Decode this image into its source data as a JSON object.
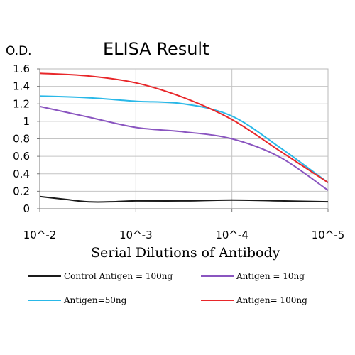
{
  "chart_data": {
    "type": "line",
    "title": "ELISA Result",
    "ylabel": "O.D.",
    "xlabel": "Serial Dilutions of Antibody",
    "x_ticks": [
      "10^-2",
      "10^-3",
      "10^-4",
      "10^-5"
    ],
    "y_ticks": [
      "1.6",
      "1.4",
      "1.2",
      "1",
      "0.8",
      "0.6",
      "0.4",
      "0.2",
      "0"
    ],
    "ylim": [
      0,
      1.6
    ],
    "grid": true,
    "legend_position": "bottom",
    "series": [
      {
        "name": "Control Antigen = 100ng",
        "color": "#1a1a1a",
        "points": [
          [
            0,
            0.14
          ],
          [
            0.25,
            0.11
          ],
          [
            0.5,
            0.08
          ],
          [
            0.75,
            0.08
          ],
          [
            1,
            0.09
          ],
          [
            1.5,
            0.09
          ],
          [
            2,
            0.1
          ],
          [
            2.5,
            0.09
          ],
          [
            3,
            0.08
          ]
        ]
      },
      {
        "name": "Antigen = 10ng",
        "color": "#8a55c0",
        "points": [
          [
            0,
            1.17
          ],
          [
            0.5,
            1.05
          ],
          [
            1,
            0.93
          ],
          [
            1.5,
            0.88
          ],
          [
            2,
            0.8
          ],
          [
            2.5,
            0.59
          ],
          [
            3,
            0.21
          ]
        ]
      },
      {
        "name": "Antigen=50ng",
        "color": "#29b8e8",
        "points": [
          [
            0,
            1.29
          ],
          [
            0.5,
            1.27
          ],
          [
            1,
            1.23
          ],
          [
            1.5,
            1.2
          ],
          [
            2,
            1.06
          ],
          [
            2.5,
            0.7
          ],
          [
            3,
            0.3
          ]
        ]
      },
      {
        "name": "Antigen= 100ng",
        "color": "#e8272a",
        "points": [
          [
            0,
            1.55
          ],
          [
            0.5,
            1.52
          ],
          [
            1,
            1.44
          ],
          [
            1.5,
            1.27
          ],
          [
            2,
            1.02
          ],
          [
            2.5,
            0.66
          ],
          [
            3,
            0.3
          ]
        ]
      }
    ]
  }
}
